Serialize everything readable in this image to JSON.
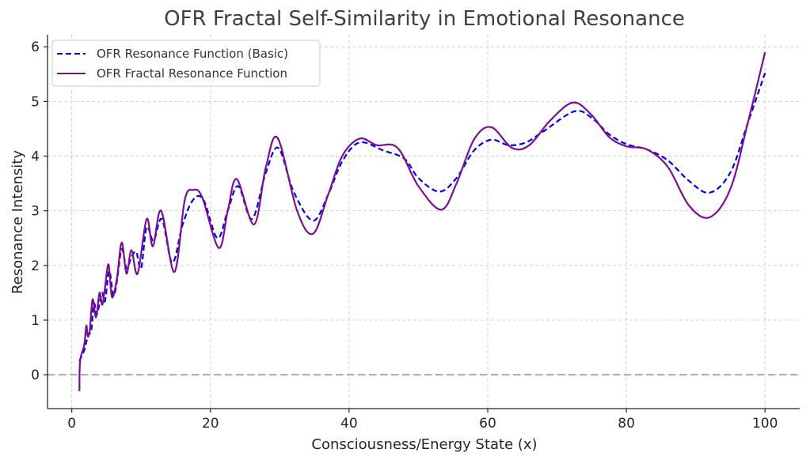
{
  "chart_data": {
    "type": "line",
    "title": "OFR Fractal Self-Similarity in Emotional Resonance",
    "xlabel": "Consciousness/Energy State (x)",
    "ylabel": "Resonance Intensity",
    "xlim": [
      -3.5,
      105
    ],
    "ylim": [
      -0.62,
      6.22
    ],
    "xticks": [
      0,
      20,
      40,
      60,
      80,
      100
    ],
    "yticks": [
      0,
      1,
      2,
      3,
      4,
      5,
      6
    ],
    "grid": true,
    "legend_position": "top-left",
    "reference_line": {
      "y": 0,
      "style": "dashed",
      "color": "#aaaaaa"
    },
    "series": [
      {
        "name": "OFR Resonance Function (Basic)",
        "color": "#0000e6",
        "style": "dashed",
        "points": [
          [
            1.1,
            0.25
          ],
          [
            1.8,
            0.45
          ],
          [
            2.1,
            0.6
          ],
          [
            2.4,
            0.75
          ],
          [
            2.8,
            0.8
          ],
          [
            3.2,
            1.3
          ],
          [
            3.6,
            1.1
          ],
          [
            4.0,
            1.3
          ],
          [
            4.4,
            1.5
          ],
          [
            4.8,
            1.35
          ],
          [
            5.4,
            1.9
          ],
          [
            6.0,
            1.45
          ],
          [
            6.5,
            1.7
          ],
          [
            7.2,
            2.3
          ],
          [
            7.9,
            1.95
          ],
          [
            8.6,
            2.15
          ],
          [
            9.3,
            2.25
          ],
          [
            10.0,
            1.95
          ],
          [
            10.8,
            2.7
          ],
          [
            11.8,
            2.45
          ],
          [
            13.0,
            2.85
          ],
          [
            14.5,
            2.05
          ],
          [
            16.0,
            2.75
          ],
          [
            17.5,
            3.2
          ],
          [
            19.0,
            3.2
          ],
          [
            21.0,
            2.5
          ],
          [
            22.5,
            3.0
          ],
          [
            24.0,
            3.45
          ],
          [
            26.0,
            2.85
          ],
          [
            28.0,
            3.7
          ],
          [
            29.8,
            4.15
          ],
          [
            32.0,
            3.35
          ],
          [
            34.8,
            2.82
          ],
          [
            37.0,
            3.3
          ],
          [
            39.0,
            3.9
          ],
          [
            41.5,
            4.25
          ],
          [
            45.0,
            4.1
          ],
          [
            48.0,
            3.95
          ],
          [
            50.0,
            3.6
          ],
          [
            53.0,
            3.35
          ],
          [
            55.5,
            3.6
          ],
          [
            58.0,
            4.1
          ],
          [
            60.5,
            4.3
          ],
          [
            63.0,
            4.2
          ],
          [
            65.5,
            4.25
          ],
          [
            68.0,
            4.45
          ],
          [
            72.5,
            4.82
          ],
          [
            75.0,
            4.7
          ],
          [
            77.5,
            4.4
          ],
          [
            80.0,
            4.22
          ],
          [
            83.0,
            4.12
          ],
          [
            86.0,
            3.92
          ],
          [
            89.0,
            3.55
          ],
          [
            92.0,
            3.33
          ],
          [
            95.0,
            3.7
          ],
          [
            97.5,
            4.6
          ],
          [
            100.0,
            5.52
          ]
        ]
      },
      {
        "name": "OFR Fractal Resonance Function",
        "color": "#7b0f8f",
        "style": "solid",
        "points": [
          [
            1.1,
            -0.3
          ],
          [
            1.2,
            0.25
          ],
          [
            1.8,
            0.55
          ],
          [
            2.1,
            0.9
          ],
          [
            2.3,
            0.7
          ],
          [
            2.6,
            0.82
          ],
          [
            3.0,
            1.38
          ],
          [
            3.5,
            1.05
          ],
          [
            4.0,
            1.5
          ],
          [
            4.4,
            1.28
          ],
          [
            4.8,
            1.6
          ],
          [
            5.3,
            2.02
          ],
          [
            5.8,
            1.42
          ],
          [
            6.5,
            1.75
          ],
          [
            7.2,
            2.42
          ],
          [
            7.9,
            1.85
          ],
          [
            8.6,
            2.28
          ],
          [
            9.5,
            1.85
          ],
          [
            10.8,
            2.85
          ],
          [
            11.7,
            2.35
          ],
          [
            12.9,
            3.0
          ],
          [
            14.8,
            1.88
          ],
          [
            16.3,
            3.2
          ],
          [
            17.5,
            3.38
          ],
          [
            18.8,
            3.25
          ],
          [
            21.2,
            2.32
          ],
          [
            22.5,
            3.0
          ],
          [
            23.8,
            3.58
          ],
          [
            26.3,
            2.75
          ],
          [
            28.0,
            3.8
          ],
          [
            29.7,
            4.33
          ],
          [
            32.5,
            3.0
          ],
          [
            34.8,
            2.58
          ],
          [
            37.0,
            3.3
          ],
          [
            39.0,
            4.0
          ],
          [
            41.5,
            4.32
          ],
          [
            44.0,
            4.2
          ],
          [
            47.0,
            4.15
          ],
          [
            50.0,
            3.45
          ],
          [
            53.3,
            3.02
          ],
          [
            55.5,
            3.5
          ],
          [
            58.0,
            4.3
          ],
          [
            60.5,
            4.53
          ],
          [
            63.5,
            4.15
          ],
          [
            66.0,
            4.2
          ],
          [
            69.0,
            4.65
          ],
          [
            72.3,
            4.98
          ],
          [
            75.0,
            4.75
          ],
          [
            77.5,
            4.35
          ],
          [
            80.0,
            4.18
          ],
          [
            83.0,
            4.12
          ],
          [
            86.0,
            3.8
          ],
          [
            89.0,
            3.1
          ],
          [
            92.0,
            2.88
          ],
          [
            95.0,
            3.4
          ],
          [
            97.5,
            4.6
          ],
          [
            100.0,
            5.9
          ]
        ]
      }
    ]
  }
}
